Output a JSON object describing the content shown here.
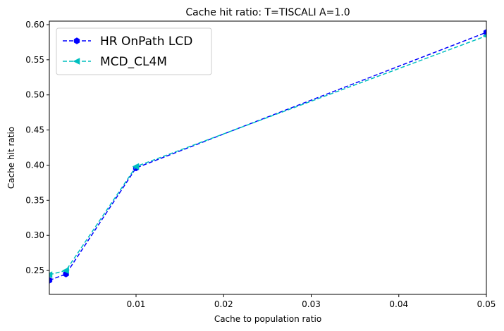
{
  "chart_data": {
    "type": "line",
    "title": "Cache hit ratio: T=TISCALI A=1.0",
    "xlabel": "Cache to population ratio",
    "ylabel": "Cache hit ratio",
    "xlim": [
      0.0001,
      0.05
    ],
    "ylim": [
      0.216,
      0.605
    ],
    "xticks": [
      0.01,
      0.02,
      0.03,
      0.04,
      0.05
    ],
    "xtick_labels": [
      "0.01",
      "0.02",
      "0.03",
      "0.04",
      "0.05"
    ],
    "yticks": [
      0.25,
      0.3,
      0.35,
      0.4,
      0.45,
      0.5,
      0.55,
      0.6
    ],
    "ytick_labels": [
      "0.25",
      "0.30",
      "0.35",
      "0.40",
      "0.45",
      "0.50",
      "0.55",
      "0.60"
    ],
    "grid": false,
    "legend_position": "top-left",
    "series": [
      {
        "name": "HR OnPath LCD",
        "color": "#0000ff",
        "marker": "hexagon",
        "linestyle": "dashed",
        "x": [
          0.0001,
          0.002,
          0.01,
          0.05
        ],
        "y": [
          0.236,
          0.245,
          0.396,
          0.589
        ]
      },
      {
        "name": "MCD_CL4M",
        "color": "#00bfbf",
        "marker": "left-triangle",
        "linestyle": "dashed",
        "x": [
          0.0001,
          0.002,
          0.01,
          0.05
        ],
        "y": [
          0.244,
          0.25,
          0.398,
          0.584
        ]
      }
    ]
  }
}
